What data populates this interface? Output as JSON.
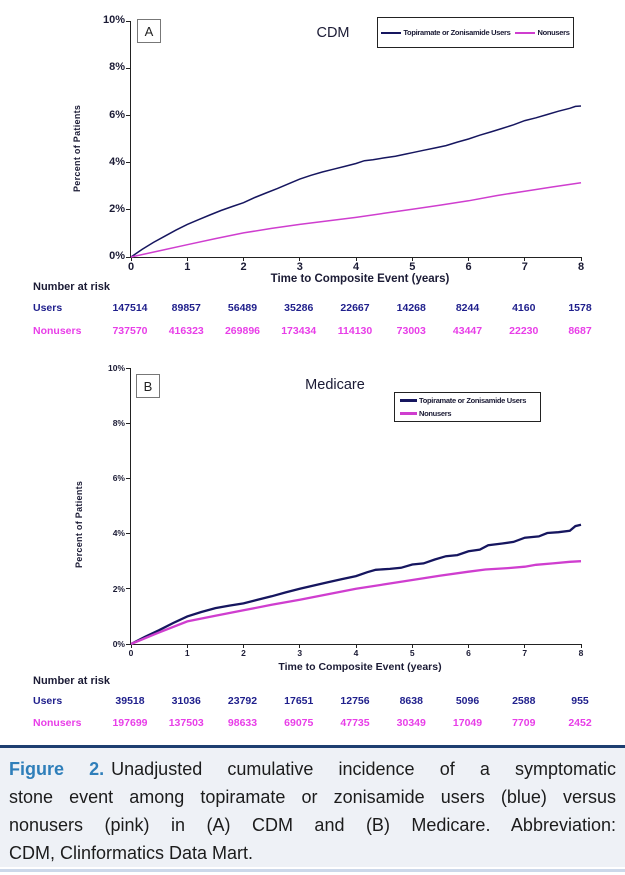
{
  "colors": {
    "users_line": "#16165f",
    "nonusers_line": "#cf3ecf",
    "axis_text": "#1b1b35",
    "users_text": "#1f1f8c",
    "nonusers_text": "#e83ee8",
    "caption_label": "#2f7fba",
    "caption_top_rule": "#1d3e70",
    "caption_bottom_rule": "#ccd8ea",
    "caption_background": "#eef1f6"
  },
  "chart_data": [
    {
      "type": "line",
      "panel_label": "A",
      "title": "CDM",
      "xlabel": "Time to Composite Event (years)",
      "ylabel": "Percent of Patients",
      "xlim": [
        0,
        8
      ],
      "ylim": [
        0,
        10
      ],
      "xticks": [
        0,
        1,
        2,
        3,
        4,
        5,
        6,
        7,
        8
      ],
      "ytick_labels": [
        "0%",
        "2%",
        "4%",
        "6%",
        "8%",
        "10%"
      ],
      "ytick_values": [
        0,
        2,
        4,
        6,
        8,
        10
      ],
      "grid": false,
      "legend_position": "top-right-inside-horizontal",
      "series": [
        {
          "name": "Topiramate or Zonisamide Users",
          "color": "#16165f",
          "points": [
            [
              0,
              0
            ],
            [
              0.2,
              0.33
            ],
            [
              0.4,
              0.62
            ],
            [
              0.6,
              0.88
            ],
            [
              0.8,
              1.14
            ],
            [
              1,
              1.38
            ],
            [
              1.2,
              1.58
            ],
            [
              1.4,
              1.78
            ],
            [
              1.6,
              1.97
            ],
            [
              1.8,
              2.14
            ],
            [
              2,
              2.3
            ],
            [
              2.2,
              2.52
            ],
            [
              2.4,
              2.71
            ],
            [
              2.6,
              2.9
            ],
            [
              2.8,
              3.1
            ],
            [
              3,
              3.3
            ],
            [
              3.2,
              3.46
            ],
            [
              3.4,
              3.6
            ],
            [
              3.6,
              3.72
            ],
            [
              3.8,
              3.84
            ],
            [
              4,
              3.96
            ],
            [
              4.15,
              4.08
            ],
            [
              4.3,
              4.12
            ],
            [
              4.5,
              4.2
            ],
            [
              4.7,
              4.27
            ],
            [
              4.9,
              4.37
            ],
            [
              5,
              4.42
            ],
            [
              5.2,
              4.52
            ],
            [
              5.4,
              4.62
            ],
            [
              5.6,
              4.72
            ],
            [
              5.8,
              4.87
            ],
            [
              6,
              5.0
            ],
            [
              6.2,
              5.16
            ],
            [
              6.4,
              5.3
            ],
            [
              6.6,
              5.45
            ],
            [
              6.8,
              5.6
            ],
            [
              7,
              5.78
            ],
            [
              7.2,
              5.9
            ],
            [
              7.4,
              6.04
            ],
            [
              7.6,
              6.18
            ],
            [
              7.8,
              6.3
            ],
            [
              7.9,
              6.38
            ],
            [
              8,
              6.4
            ]
          ]
        },
        {
          "name": "Nonusers",
          "color": "#cf3ecf",
          "points": [
            [
              0,
              0
            ],
            [
              0.5,
              0.26
            ],
            [
              1,
              0.52
            ],
            [
              1.5,
              0.78
            ],
            [
              2,
              1.02
            ],
            [
              2.5,
              1.21
            ],
            [
              3,
              1.38
            ],
            [
              3.5,
              1.53
            ],
            [
              4,
              1.68
            ],
            [
              4.5,
              1.85
            ],
            [
              5,
              2.02
            ],
            [
              5.5,
              2.2
            ],
            [
              6,
              2.38
            ],
            [
              6.5,
              2.6
            ],
            [
              7,
              2.79
            ],
            [
              7.5,
              2.97
            ],
            [
              8,
              3.15
            ]
          ]
        }
      ],
      "number_at_risk": {
        "label": "Number at risk",
        "rows": [
          {
            "name": "Users",
            "color": "#1f1f8c",
            "values": [
              "147514",
              "89857",
              "56489",
              "35286",
              "22667",
              "14268",
              "8244",
              "4160",
              "1578"
            ]
          },
          {
            "name": "Nonusers",
            "color": "#e83ee8",
            "values": [
              "737570",
              "416323",
              "269896",
              "173434",
              "114130",
              "73003",
              "43447",
              "22230",
              "8687"
            ]
          }
        ]
      }
    },
    {
      "type": "line",
      "panel_label": "B",
      "title": "Medicare",
      "xlabel": "Time to Composite Event (years)",
      "ylabel": "Percent of Patients",
      "xlim": [
        0,
        8
      ],
      "ylim": [
        0,
        10
      ],
      "xticks": [
        0,
        1,
        2,
        3,
        4,
        5,
        6,
        7,
        8
      ],
      "ytick_labels": [
        "0%",
        "2%",
        "4%",
        "6%",
        "8%",
        "10%"
      ],
      "ytick_values": [
        0,
        2,
        4,
        6,
        8,
        10
      ],
      "grid": false,
      "legend_position": "top-right-inside-stacked",
      "series": [
        {
          "name": "Topiramate or Zonisamide Users",
          "color": "#16165f",
          "points": [
            [
              0,
              0
            ],
            [
              0.25,
              0.26
            ],
            [
              0.5,
              0.5
            ],
            [
              0.75,
              0.76
            ],
            [
              1,
              1.0
            ],
            [
              1.25,
              1.16
            ],
            [
              1.5,
              1.3
            ],
            [
              1.75,
              1.39
            ],
            [
              2,
              1.47
            ],
            [
              2.25,
              1.6
            ],
            [
              2.5,
              1.73
            ],
            [
              2.75,
              1.87
            ],
            [
              3,
              2.0
            ],
            [
              3.25,
              2.12
            ],
            [
              3.5,
              2.24
            ],
            [
              3.75,
              2.35
            ],
            [
              4,
              2.46
            ],
            [
              4.2,
              2.6
            ],
            [
              4.35,
              2.69
            ],
            [
              4.6,
              2.72
            ],
            [
              4.8,
              2.76
            ],
            [
              5,
              2.88
            ],
            [
              5.2,
              2.92
            ],
            [
              5.4,
              3.06
            ],
            [
              5.6,
              3.18
            ],
            [
              5.8,
              3.22
            ],
            [
              6,
              3.36
            ],
            [
              6.2,
              3.42
            ],
            [
              6.35,
              3.58
            ],
            [
              6.6,
              3.64
            ],
            [
              6.8,
              3.7
            ],
            [
              7,
              3.85
            ],
            [
              7.25,
              3.9
            ],
            [
              7.4,
              4.02
            ],
            [
              7.6,
              4.05
            ],
            [
              7.8,
              4.1
            ],
            [
              7.9,
              4.27
            ],
            [
              8,
              4.32
            ]
          ]
        },
        {
          "name": "Nonusers",
          "color": "#cf3ecf",
          "points": [
            [
              0,
              0
            ],
            [
              0.5,
              0.42
            ],
            [
              1,
              0.82
            ],
            [
              1.5,
              1.02
            ],
            [
              2,
              1.22
            ],
            [
              2.5,
              1.42
            ],
            [
              3,
              1.6
            ],
            [
              3.5,
              1.8
            ],
            [
              4,
              2.0
            ],
            [
              4.5,
              2.16
            ],
            [
              5,
              2.32
            ],
            [
              5.5,
              2.48
            ],
            [
              6,
              2.62
            ],
            [
              6.3,
              2.7
            ],
            [
              6.7,
              2.75
            ],
            [
              7,
              2.8
            ],
            [
              7.2,
              2.87
            ],
            [
              7.5,
              2.92
            ],
            [
              7.8,
              2.98
            ],
            [
              8,
              3.0
            ]
          ]
        }
      ],
      "number_at_risk": {
        "label": "Number at risk",
        "rows": [
          {
            "name": "Users",
            "color": "#1f1f8c",
            "values": [
              "39518",
              "31036",
              "23792",
              "17651",
              "12756",
              "8638",
              "5096",
              "2588",
              "955"
            ]
          },
          {
            "name": "Nonusers",
            "color": "#e83ee8",
            "values": [
              "197699",
              "137503",
              "98633",
              "69075",
              "47735",
              "30349",
              "17049",
              "7709",
              "2452"
            ]
          }
        ]
      }
    }
  ],
  "caption": {
    "label": "Figure 2.",
    "lines": [
      "Unadjusted cumulative incidence of a symptomatic",
      "stone event among topiramate or zonisamide users (blue) versus",
      "nonusers (pink) in (A) CDM and (B) Medicare. Abbreviation:",
      "CDM, Clinformatics Data Mart."
    ]
  }
}
